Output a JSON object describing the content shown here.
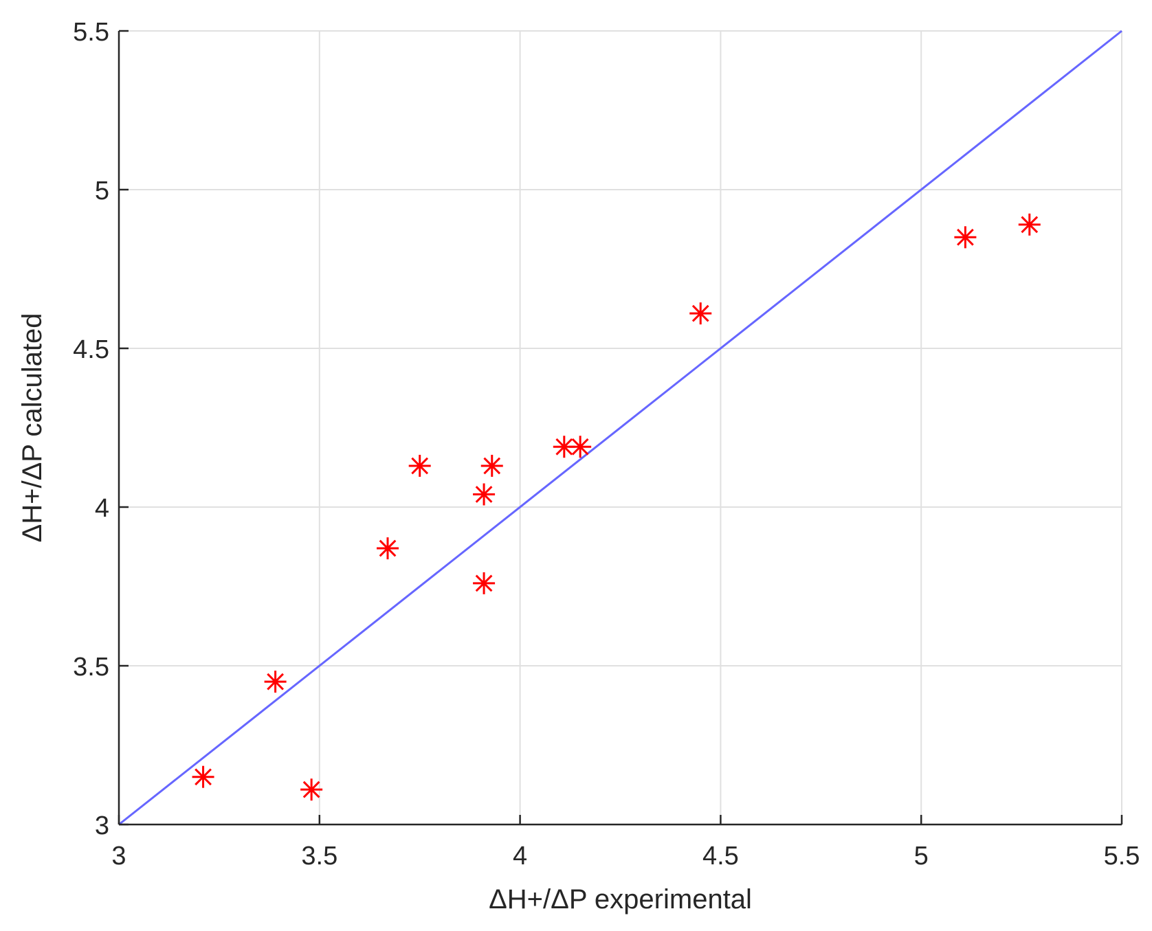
{
  "chart_data": {
    "type": "scatter",
    "title": "",
    "xlabel": "ΔH+/ΔP experimental",
    "ylabel": "ΔH+/ΔP calculated",
    "xlim": [
      3,
      5.5
    ],
    "ylim": [
      3,
      5.5
    ],
    "x_ticks": [
      "3",
      "3.5",
      "4",
      "4.5",
      "5",
      "5.5"
    ],
    "y_ticks": [
      "3",
      "3.5",
      "4",
      "4.5",
      "5",
      "5.5"
    ],
    "x_tick_values": [
      3,
      3.5,
      4,
      4.5,
      5,
      5.5
    ],
    "y_tick_values": [
      3,
      3.5,
      4,
      4.5,
      5,
      5.5
    ],
    "grid": true,
    "legend": "none",
    "series": [
      {
        "marker": "asterisk",
        "color": "#ff0000",
        "x": [
          3.21,
          3.39,
          3.48,
          3.67,
          3.75,
          3.91,
          3.91,
          3.93,
          4.11,
          4.15,
          4.45,
          5.11,
          5.27
        ],
        "y": [
          3.15,
          3.45,
          3.11,
          3.87,
          4.13,
          4.04,
          3.76,
          4.13,
          4.19,
          4.19,
          4.61,
          4.85,
          4.89
        ]
      }
    ],
    "reference_line": {
      "color": "#6666ff",
      "x": [
        3,
        5.5
      ],
      "y": [
        3,
        5.5
      ]
    }
  }
}
